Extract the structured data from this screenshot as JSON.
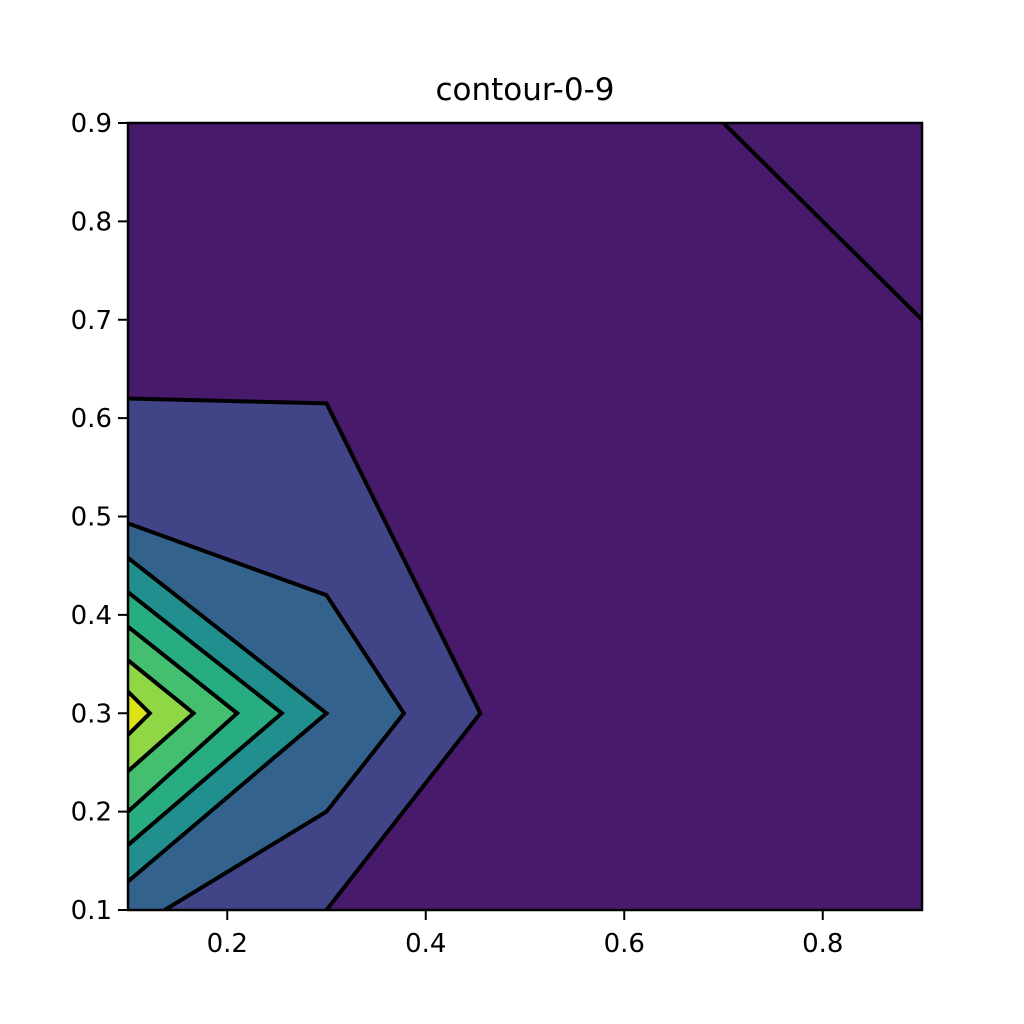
{
  "chart_data": {
    "type": "contour",
    "title": "contour-0-9",
    "xlabel": "",
    "ylabel": "",
    "xlim": [
      0.1,
      0.9
    ],
    "ylim": [
      0.1,
      0.9
    ],
    "x_ticks": [
      0.2,
      0.4,
      0.6,
      0.8
    ],
    "x_tick_labels": [
      "0.2",
      "0.4",
      "0.6",
      "0.8"
    ],
    "y_ticks": [
      0.1,
      0.2,
      0.3,
      0.4,
      0.5,
      0.6,
      0.7,
      0.8,
      0.9
    ],
    "y_tick_labels": [
      "0.1",
      "0.2",
      "0.3",
      "0.4",
      "0.5",
      "0.6",
      "0.7",
      "0.8",
      "0.9"
    ],
    "grid": false,
    "colormap": "viridis",
    "colors": {
      "background_level": "#481a6c",
      "level_1": "#414487",
      "level_2": "#33638d",
      "level_3": "#218f8d",
      "level_4": "#27ad81",
      "level_5": "#44bf70",
      "level_6": "#8fd744",
      "level_7": "#dde318",
      "contour_line": "#000000"
    },
    "contour_lines": [
      {
        "points": [
          [
            0.7,
            0.9
          ],
          [
            0.9,
            0.7
          ]
        ]
      },
      {
        "points": [
          [
            0.1,
            0.62
          ],
          [
            0.3,
            0.615
          ],
          [
            0.455,
            0.3
          ],
          [
            0.3,
            0.1
          ]
        ]
      },
      {
        "points": [
          [
            0.1,
            0.493
          ],
          [
            0.3,
            0.42
          ],
          [
            0.378,
            0.3
          ],
          [
            0.3,
            0.2
          ],
          [
            0.137,
            0.1
          ]
        ]
      },
      {
        "points": [
          [
            0.1,
            0.458
          ],
          [
            0.3,
            0.3
          ],
          [
            0.1,
            0.129
          ]
        ]
      },
      {
        "points": [
          [
            0.1,
            0.423
          ],
          [
            0.255,
            0.3
          ],
          [
            0.1,
            0.166
          ]
        ]
      },
      {
        "points": [
          [
            0.1,
            0.388
          ],
          [
            0.21,
            0.3
          ],
          [
            0.1,
            0.2
          ]
        ]
      },
      {
        "points": [
          [
            0.1,
            0.354
          ],
          [
            0.166,
            0.3
          ],
          [
            0.1,
            0.241
          ]
        ]
      },
      {
        "points": [
          [
            0.1,
            0.322
          ],
          [
            0.122,
            0.3
          ],
          [
            0.1,
            0.278
          ]
        ]
      }
    ]
  }
}
